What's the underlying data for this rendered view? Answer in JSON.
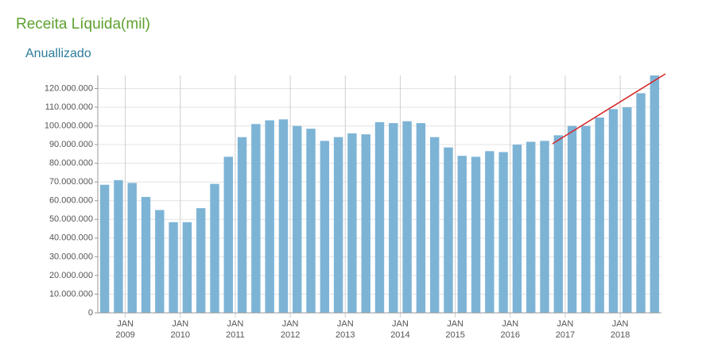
{
  "chart_data": {
    "type": "bar",
    "title": "Receita Líquida(mil)",
    "subtitle": "Anuallizado",
    "categories": [
      null,
      null,
      "JAN 2009",
      null,
      null,
      null,
      "JAN 2010",
      null,
      null,
      null,
      "JAN 2011",
      null,
      null,
      null,
      "JAN 2012",
      null,
      null,
      null,
      "JAN 2013",
      null,
      null,
      null,
      "JAN 2014",
      null,
      null,
      null,
      "JAN 2015",
      null,
      null,
      null,
      "JAN 2016",
      null,
      null,
      null,
      "JAN 2017",
      null,
      null,
      null,
      "JAN 2018",
      null,
      null
    ],
    "values": [
      68500000,
      71000000,
      69500000,
      62000000,
      55000000,
      48500000,
      48500000,
      56000000,
      69000000,
      83500000,
      94000000,
      101000000,
      103000000,
      103500000,
      100000000,
      98500000,
      92000000,
      94000000,
      96000000,
      95500000,
      102000000,
      101500000,
      102500000,
      101500000,
      94000000,
      88500000,
      84000000,
      83500000,
      86500000,
      86000000,
      90000000,
      91500000,
      92000000,
      95000000,
      100000000,
      100000000,
      104500000,
      109000000,
      110000000,
      117500000,
      127000000
    ],
    "color": "#7db4d6",
    "ylim": [
      0,
      127000000
    ],
    "yticks": [
      {
        "value": 0,
        "label": "0"
      },
      {
        "value": 10000000,
        "label": "10.000.000"
      },
      {
        "value": 20000000,
        "label": "20.000.000"
      },
      {
        "value": 30000000,
        "label": "30.000.000"
      },
      {
        "value": 40000000,
        "label": "40.000.000"
      },
      {
        "value": 50000000,
        "label": "50.000.000"
      },
      {
        "value": 60000000,
        "label": "60.000.000"
      },
      {
        "value": 70000000,
        "label": "70.000.000"
      },
      {
        "value": 80000000,
        "label": "80.000.000"
      },
      {
        "value": 90000000,
        "label": "90.000.000"
      },
      {
        "value": 100000000,
        "label": "100.000.000"
      },
      {
        "value": 110000000,
        "label": "110.000.000"
      },
      {
        "value": 120000000,
        "label": "120.000.000"
      }
    ],
    "grid": true
  }
}
